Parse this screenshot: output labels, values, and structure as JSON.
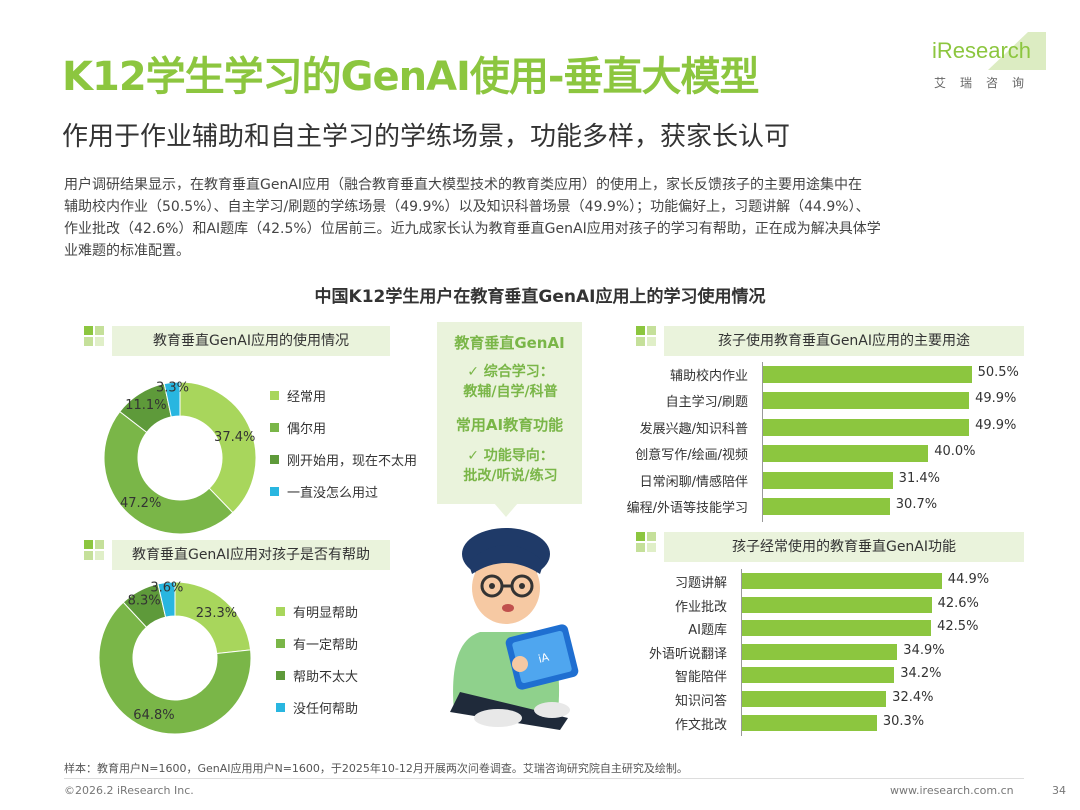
{
  "header": {
    "title": "K12学生学习的GenAI使用-垂直大模型",
    "subtitle": "作用于作业辅助和自主学习的学练场景，功能多样，获家长认可",
    "logo_text": "iResearch",
    "logo_sub": "艾瑞咨询"
  },
  "intro_lines": [
    "用户调研结果显示，在教育垂直GenAI应用（融合教育垂直大模型技术的教育类应用）的使用上，家长反馈孩子的主要用途集中在",
    "辅助校内作业（50.5%）、自主学习/刷题的学练场景（49.9%）以及知识科普场景（49.9%）；功能偏好上，习题讲解（44.9%）、",
    "作业批改（42.6%）和AI题库（42.5%）位居前三。近九成家长认为教育垂直GenAI应用对孩子的学习有帮助，正在成为解决具体学",
    "业难题的标准配置。"
  ],
  "chart_title": "中国K12学生用户在教育垂直GenAI应用上的学习使用情况",
  "center_box": {
    "title": "教育垂直GenAI",
    "item1_line1": "✓ 综合学习：",
    "item1_line2": "教辅/自学/科普",
    "title2": "常用AI教育功能",
    "item2_line1": "✓ 功能导向：",
    "item2_line2": "批改/听说/练习"
  },
  "colors": {
    "accent": "#8cc63f",
    "green_light": "#a8d65c",
    "green_mid": "#7ab648",
    "green_dark": "#5e9a3a",
    "cyan": "#29b6e0"
  },
  "chart_data": [
    {
      "type": "pie",
      "title": "教育垂直GenAI应用的使用情况",
      "categories": [
        "经常用",
        "偶尔用",
        "刚开始用，现在不太用",
        "一直没怎么用过"
      ],
      "values": [
        37.4,
        47.2,
        11.1,
        3.3
      ],
      "labels": [
        "37.4%",
        "47.2%",
        "11.1%",
        "3.3%"
      ],
      "colors": [
        "#a8d65c",
        "#7ab648",
        "#5e9a3a",
        "#29b6e0"
      ]
    },
    {
      "type": "pie",
      "title": "教育垂直GenAI应用对孩子是否有帮助",
      "categories": [
        "有明显帮助",
        "有一定帮助",
        "帮助不太大",
        "没任何帮助"
      ],
      "values": [
        23.3,
        64.8,
        8.3,
        3.6
      ],
      "labels": [
        "23.3%",
        "64.8%",
        "8.3%",
        "3.6%"
      ],
      "colors": [
        "#a8d65c",
        "#7ab648",
        "#5e9a3a",
        "#29b6e0"
      ]
    },
    {
      "type": "bar",
      "title": "孩子使用教育垂直GenAI应用的主要用途",
      "categories": [
        "辅助校内作业",
        "自主学习/刷题",
        "发展兴趣/知识科普",
        "创意写作/绘画/视频",
        "日常闲聊/情感陪伴",
        "编程/外语等技能学习"
      ],
      "values": [
        50.5,
        49.9,
        49.9,
        40.0,
        31.4,
        30.7
      ],
      "labels": [
        "50.5%",
        "49.9%",
        "49.9%",
        "40.0%",
        "31.4%",
        "30.7%"
      ]
    },
    {
      "type": "bar",
      "title": "孩子经常使用的教育垂直GenAI功能",
      "categories": [
        "习题讲解",
        "作业批改",
        "AI题库",
        "外语听说翻译",
        "智能陪伴",
        "知识问答",
        "作文批改"
      ],
      "values": [
        44.9,
        42.6,
        42.5,
        34.9,
        34.2,
        32.4,
        30.3
      ],
      "labels": [
        "44.9%",
        "42.6%",
        "42.5%",
        "34.9%",
        "34.2%",
        "32.4%",
        "30.3%"
      ]
    }
  ],
  "footnote": "样本：教育用户N=1600，GenAI应用用户N=1600，于2025年10-12月开展两次问卷调查。艾瑞咨询研究院自主研究及绘制。",
  "footer": {
    "copyright": "©2026.2 iResearch Inc.",
    "website": "www.iresearch.com.cn",
    "page": "34"
  }
}
